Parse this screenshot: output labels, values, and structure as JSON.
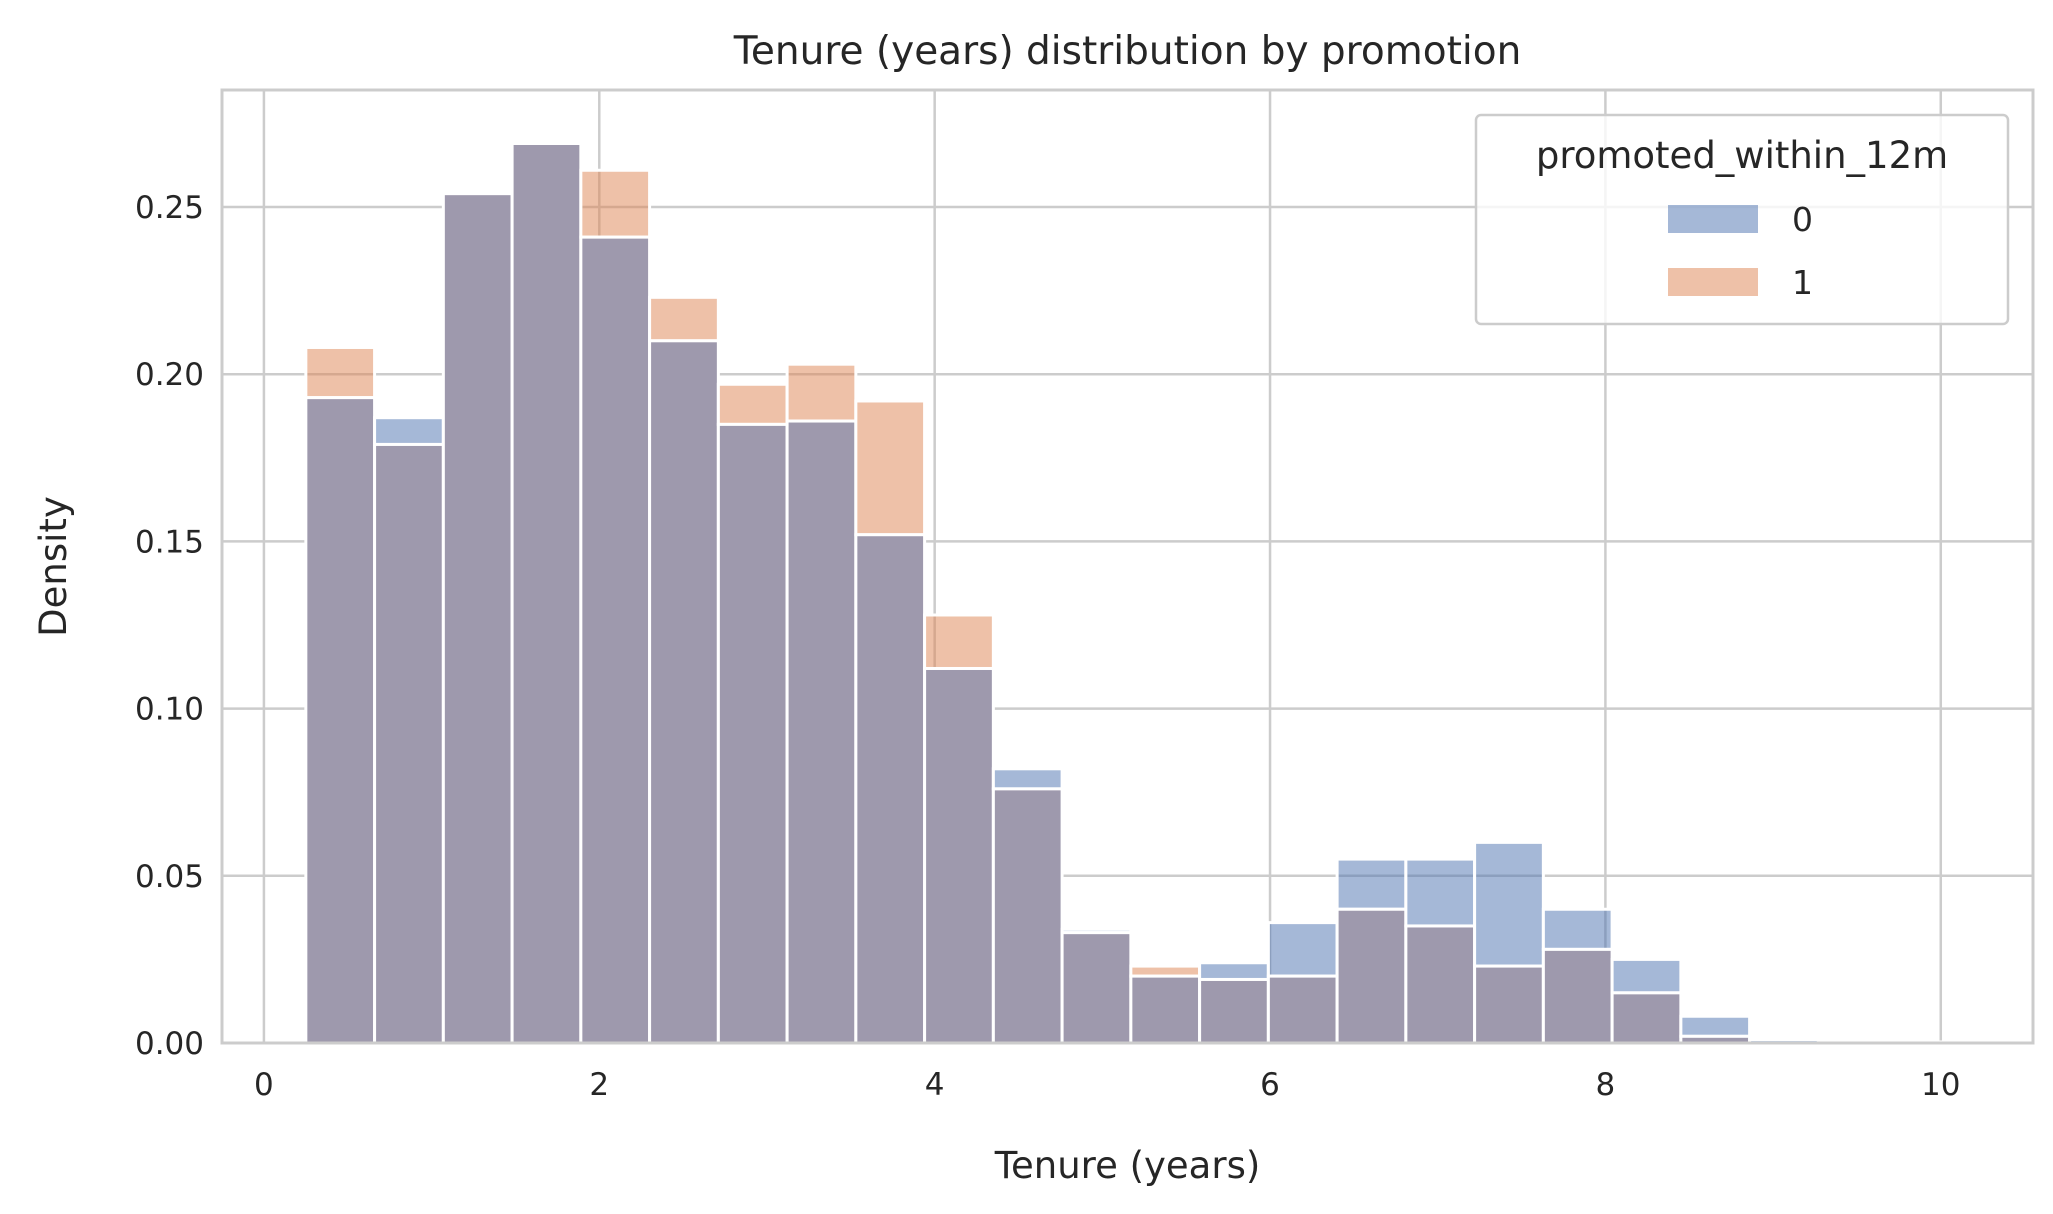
{
  "chart_data": {
    "type": "histogram",
    "title": "Tenure (years) distribution by promotion",
    "xlabel": "Tenure (years)",
    "ylabel": "Density",
    "xlim": [
      -0.25,
      10.55
    ],
    "ylim": [
      0,
      0.285
    ],
    "xticks": [
      0,
      2,
      4,
      6,
      8,
      10
    ],
    "yticks": [
      0.0,
      0.05,
      0.1,
      0.15,
      0.2,
      0.25
    ],
    "xtick_labels": [
      "0",
      "2",
      "4",
      "6",
      "8",
      "10"
    ],
    "ytick_labels": [
      "0.00",
      "0.05",
      "0.10",
      "0.15",
      "0.20",
      "0.25"
    ],
    "grid": true,
    "legend": {
      "title": "promoted_within_12m",
      "placement": "top-right",
      "entries": [
        "0",
        "1"
      ]
    },
    "bin_start": 0.25,
    "bin_width": 0.41,
    "colors": {
      "series_0": "#4c72b0",
      "series_1": "#dd8452",
      "overlap": "#9e99ad",
      "grid": "#cccccc",
      "frame": "#cccccc",
      "bar_edge": "#ffffff"
    },
    "series": [
      {
        "name": "0",
        "values": [
          0.193,
          0.187,
          0.254,
          0.269,
          0.241,
          0.21,
          0.185,
          0.186,
          0.152,
          0.112,
          0.082,
          0.034,
          0.02,
          0.024,
          0.036,
          0.055,
          0.055,
          0.06,
          0.04,
          0.025,
          0.008,
          0.001,
          0.0005,
          0.0003
        ]
      },
      {
        "name": "1",
        "values": [
          0.208,
          0.179,
          0.254,
          0.269,
          0.261,
          0.223,
          0.197,
          0.203,
          0.192,
          0.128,
          0.076,
          0.033,
          0.023,
          0.019,
          0.02,
          0.04,
          0.035,
          0.023,
          0.028,
          0.015,
          0.002,
          0.0,
          0.0,
          0.0
        ]
      }
    ]
  }
}
